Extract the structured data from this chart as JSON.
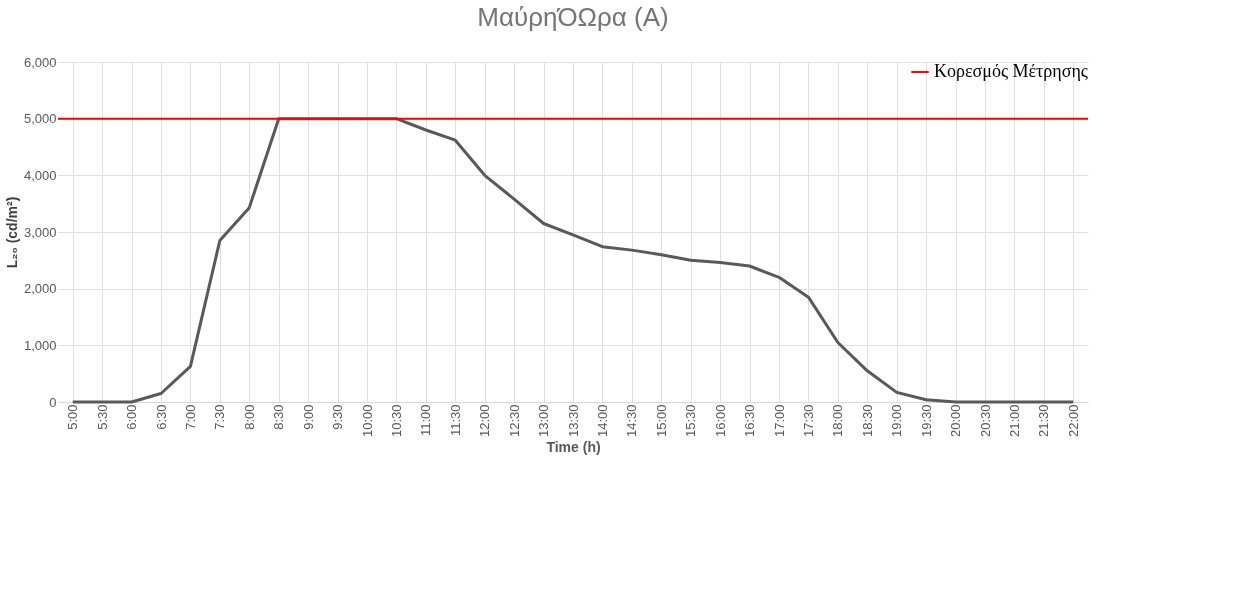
{
  "chart_data": {
    "type": "line",
    "title": "ΜαύρηΌΩρα (A)",
    "xlabel": "Time (h)",
    "ylabel": "L₂₀ (cd/m²)",
    "categories": [
      "5:00",
      "5:30",
      "6:00",
      "6:30",
      "7:00",
      "7:30",
      "8:00",
      "8:30",
      "9:00",
      "9:30",
      "10:00",
      "10:30",
      "11:00",
      "11:30",
      "12:00",
      "12:30",
      "13:00",
      "13:30",
      "14:00",
      "14:30",
      "15:00",
      "15:30",
      "16:00",
      "16:30",
      "17:00",
      "17:30",
      "18:00",
      "18:30",
      "19:00",
      "19:30",
      "20:00",
      "20:30",
      "21:00",
      "21:30",
      "22:00"
    ],
    "series": [
      {
        "color": "#595959",
        "values": [
          0,
          0,
          0,
          150,
          630,
          2850,
          3430,
          5000,
          5000,
          5000,
          5000,
          5000,
          4800,
          4620,
          4000,
          3580,
          3150,
          2950,
          2740,
          2680,
          2600,
          2500,
          2460,
          2400,
          2200,
          1850,
          1050,
          550,
          170,
          40,
          0,
          0,
          0,
          0,
          0
        ]
      }
    ],
    "ref_lines": [
      {
        "axis": "y",
        "value": 5000,
        "label": "Κορεσμός Μέτρησης",
        "color": "#ff0000"
      }
    ],
    "ylim": [
      0,
      6000
    ],
    "yticks": [
      {
        "value": 0,
        "label": "0"
      },
      {
        "value": 1000,
        "label": "1,000"
      },
      {
        "value": 2000,
        "label": "2,000"
      },
      {
        "value": 3000,
        "label": "3,000"
      },
      {
        "value": 4000,
        "label": "4,000"
      },
      {
        "value": 5000,
        "label": "5,000"
      },
      {
        "value": 6000,
        "label": "6,000"
      }
    ],
    "grid": true,
    "legend": "top right",
    "marker": "none",
    "line_style": "solid"
  }
}
